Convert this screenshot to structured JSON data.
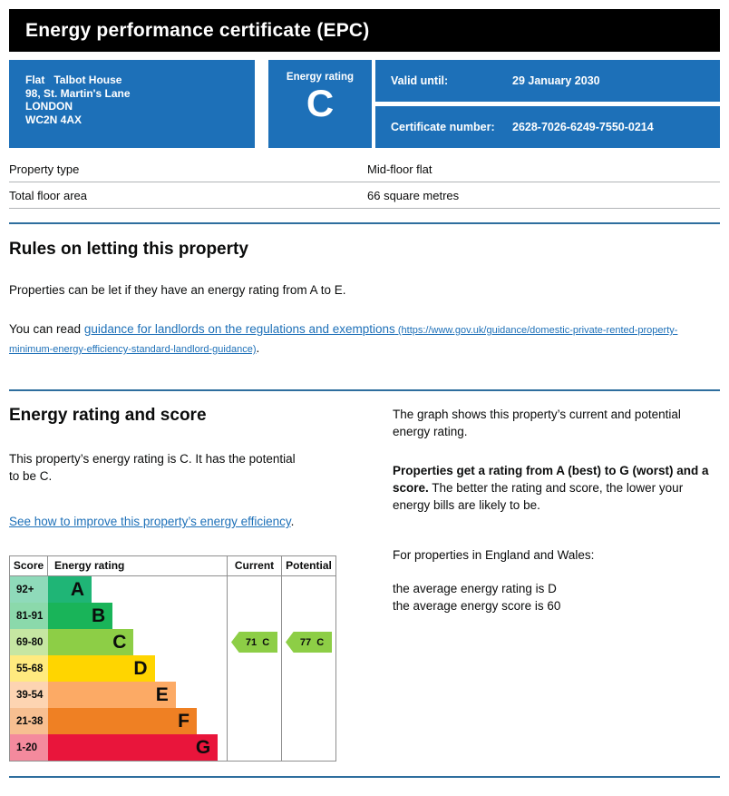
{
  "header": {
    "title": "Energy performance certificate (EPC)"
  },
  "summary": {
    "address": "Flat   Talbot House\n98, St. Martin's Lane\nLONDON\nWC2N 4AX",
    "energy_rating_label": "Energy rating",
    "energy_rating_value": "C",
    "valid_until_label": "Valid until:",
    "valid_until_value": "29 January 2030",
    "certificate_number_label": "Certificate number:",
    "certificate_number_value": "2628-7026-6249-7550-0214"
  },
  "property_details": {
    "rows": [
      {
        "label": "Property type",
        "value": "Mid-floor flat"
      },
      {
        "label": "Total floor area",
        "value": "66 square metres"
      }
    ]
  },
  "rules_section": {
    "heading": "Rules on letting this property",
    "para1": "Properties can be let if they have an energy rating from A to E.",
    "para2_prefix": "You can read ",
    "link_text": "guidance for landlords on the regulations and exemptions",
    "link_url_text": " (https://www.gov.uk/guidance/domestic-private-rented-property-minimum-energy-efficiency-standard-landlord-guidance)",
    "para2_suffix": "."
  },
  "rating_section": {
    "heading": "Energy rating and score",
    "left_para": "This property’s energy rating is C. It has the potential to be C.",
    "improve_link_text": "See how to improve this property’s energy efficiency",
    "improve_suffix": ".",
    "right_para1": "The graph shows this property’s current and potential energy rating.",
    "right_para2_bold": "Properties get a rating from A (best) to G (worst) and a score.",
    "right_para2_rest": " The better the rating and score, the lower your energy bills are likely to be.",
    "right_para3": "For properties in England and Wales:",
    "right_para4_line1": "the average energy rating is D",
    "right_para4_line2": "the average energy score is 60"
  },
  "chart_data": {
    "type": "bar",
    "title": "EPC energy rating bands",
    "headers": {
      "score": "Score",
      "rating": "Energy rating",
      "current": "Current",
      "potential": "Potential"
    },
    "bands": [
      {
        "score": "92+",
        "letter": "A",
        "color": "#1fb576",
        "tint": "#8fdaba"
      },
      {
        "score": "81-91",
        "letter": "B",
        "color": "#19b459",
        "tint": "#8bd9ab"
      },
      {
        "score": "69-80",
        "letter": "C",
        "color": "#8dce46",
        "tint": "#c6e6a2"
      },
      {
        "score": "55-68",
        "letter": "D",
        "color": "#ffd500",
        "tint": "#ffea7f"
      },
      {
        "score": "39-54",
        "letter": "E",
        "color": "#fcaa65",
        "tint": "#fdd4b2"
      },
      {
        "score": "21-38",
        "letter": "F",
        "color": "#ef8023",
        "tint": "#f7bf91"
      },
      {
        "score": "1-20",
        "letter": "G",
        "color": "#e9153b",
        "tint": "#f48a9d"
      }
    ],
    "current": {
      "score": 71,
      "band": "C",
      "label": "71  C"
    },
    "potential": {
      "score": 77,
      "band": "C",
      "label": "77  C"
    },
    "arrow_color": "#8dce46"
  },
  "colors": {
    "govuk_blue": "#1d70b8",
    "rule_blue": "#2e6e9e",
    "link_blue": "#1d70b8",
    "header_black": "#000000"
  }
}
